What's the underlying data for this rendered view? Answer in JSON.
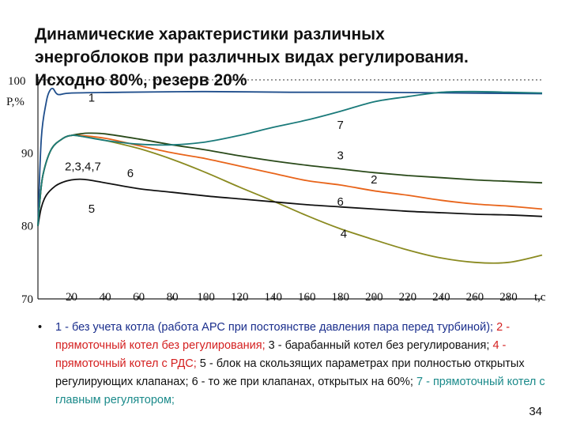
{
  "title": "Динамические характеристики различных\nэнергоблоков при различных видах регулирования.\nИсходно 80%, резерв 20%",
  "chart_data": {
    "type": "line",
    "xlabel": "t,c",
    "ylabel": "P,%",
    "xlim": [
      0,
      300
    ],
    "ylim": [
      70,
      100
    ],
    "x_ticks": [
      "20",
      "40",
      "60",
      "80",
      "100",
      "120",
      "140",
      "160",
      "180",
      "200",
      "220",
      "240",
      "260",
      "280"
    ],
    "y_ticks": [
      "70",
      "80",
      "90",
      "100"
    ],
    "series": [
      {
        "name": "1",
        "color": "#1f4e8c",
        "x": [
          0,
          2,
          5,
          7,
          9,
          12,
          20,
          50,
          100,
          150,
          200,
          250,
          300
        ],
        "y": [
          80,
          92,
          97,
          98.5,
          98.8,
          98,
          98.2,
          98.3,
          98.4,
          98.3,
          98.3,
          98.2,
          98.1
        ]
      },
      {
        "name": "2",
        "color": "#e8641a",
        "x": [
          0,
          1,
          3,
          8,
          15,
          20,
          25,
          40,
          60,
          80,
          100,
          120,
          140,
          160,
          180,
          200,
          220,
          240,
          260,
          280,
          300
        ],
        "y": [
          80,
          83,
          87,
          90.5,
          92,
          92.4,
          92.4,
          92,
          91,
          90,
          89.2,
          88.2,
          87.2,
          86.2,
          85.6,
          84.8,
          84.2,
          83.5,
          83,
          82.7,
          82.3
        ]
      },
      {
        "name": "3",
        "color": "#2a4a1a",
        "x": [
          0,
          1,
          3,
          8,
          15,
          20,
          25,
          30,
          40,
          60,
          80,
          100,
          120,
          140,
          160,
          180,
          200,
          220,
          240,
          260,
          280,
          300
        ],
        "y": [
          80,
          83,
          87,
          90.5,
          92,
          92.4,
          92.6,
          92.7,
          92.6,
          91.9,
          91.1,
          90.4,
          89.6,
          88.9,
          88.3,
          87.8,
          87.3,
          86.9,
          86.6,
          86.3,
          86.1,
          85.9
        ]
      },
      {
        "name": "4",
        "color": "#8a8a20",
        "x": [
          0,
          1,
          3,
          8,
          15,
          20,
          25,
          40,
          60,
          80,
          100,
          120,
          140,
          160,
          180,
          200,
          220,
          240,
          260,
          280,
          300
        ],
        "y": [
          80,
          83,
          87,
          90.5,
          92,
          92.4,
          92.3,
          91.7,
          90.6,
          89.1,
          87.3,
          85.3,
          83.4,
          81.4,
          79.6,
          78.1,
          76.7,
          75.6,
          75,
          75,
          76
        ]
      },
      {
        "name": "5",
        "color": "#111111",
        "x": [
          0,
          2,
          5,
          10,
          15,
          20,
          25,
          30,
          40,
          60,
          80,
          100,
          120,
          140,
          160,
          180,
          200,
          220,
          240,
          260,
          280,
          300
        ],
        "y": [
          80,
          82.5,
          84.2,
          85.4,
          86,
          86.3,
          86.4,
          86.3,
          85.9,
          85.1,
          84.6,
          84.1,
          83.7,
          83.3,
          82.9,
          82.6,
          82.3,
          82,
          81.8,
          81.6,
          81.5,
          81.3
        ]
      },
      {
        "name": "7",
        "color": "#1a7a7a",
        "x": [
          0,
          1,
          3,
          8,
          15,
          20,
          25,
          40,
          60,
          80,
          100,
          120,
          140,
          160,
          180,
          200,
          220,
          240,
          260,
          280,
          300
        ],
        "y": [
          80,
          83,
          87,
          90.5,
          92,
          92.4,
          92.3,
          91.7,
          91.2,
          91.1,
          91.5,
          92.4,
          93.5,
          94.5,
          95.7,
          97,
          97.7,
          98.3,
          98.4,
          98.3,
          98.2
        ]
      }
    ],
    "annotations": [
      {
        "text": "1",
        "x": 30,
        "y": 97
      },
      {
        "text": "7",
        "x": 178,
        "y": 93.3
      },
      {
        "text": "3",
        "x": 178,
        "y": 89.1
      },
      {
        "text": "2,3,4,7",
        "x": 16,
        "y": 87.6
      },
      {
        "text": "6",
        "x": 53,
        "y": 86.7
      },
      {
        "text": "2",
        "x": 198,
        "y": 85.8
      },
      {
        "text": "6",
        "x": 178,
        "y": 82.8
      },
      {
        "text": "5",
        "x": 30,
        "y": 81.8
      },
      {
        "text": "4",
        "x": 180,
        "y": 78.4
      }
    ]
  },
  "legend": {
    "bullet": "•",
    "items": [
      {
        "text": "1 - без учета котла (работа АРС при постоянстве давления пара перед турбиной);",
        "color": "#1a2e8c"
      },
      {
        "text": " 2 - прямоточный котел без регулирования;",
        "color": "#d42020"
      },
      {
        "text": "  3 - барабанный котел без регулирования; ",
        "color": "#111111"
      },
      {
        "text": " 4 - прямоточный котел с РДС;",
        "color": "#d42020"
      },
      {
        "text": "  5 - блок на скользящих параметрах при полностью открытых регулирующих клапанах;  6 - то же при клапанах, открытых на 60%; ",
        "color": "#111111"
      },
      {
        "text": " 7 - прямоточный котел с главным регулятором;",
        "color": "#1a8a8a"
      }
    ]
  },
  "page_number": "34"
}
